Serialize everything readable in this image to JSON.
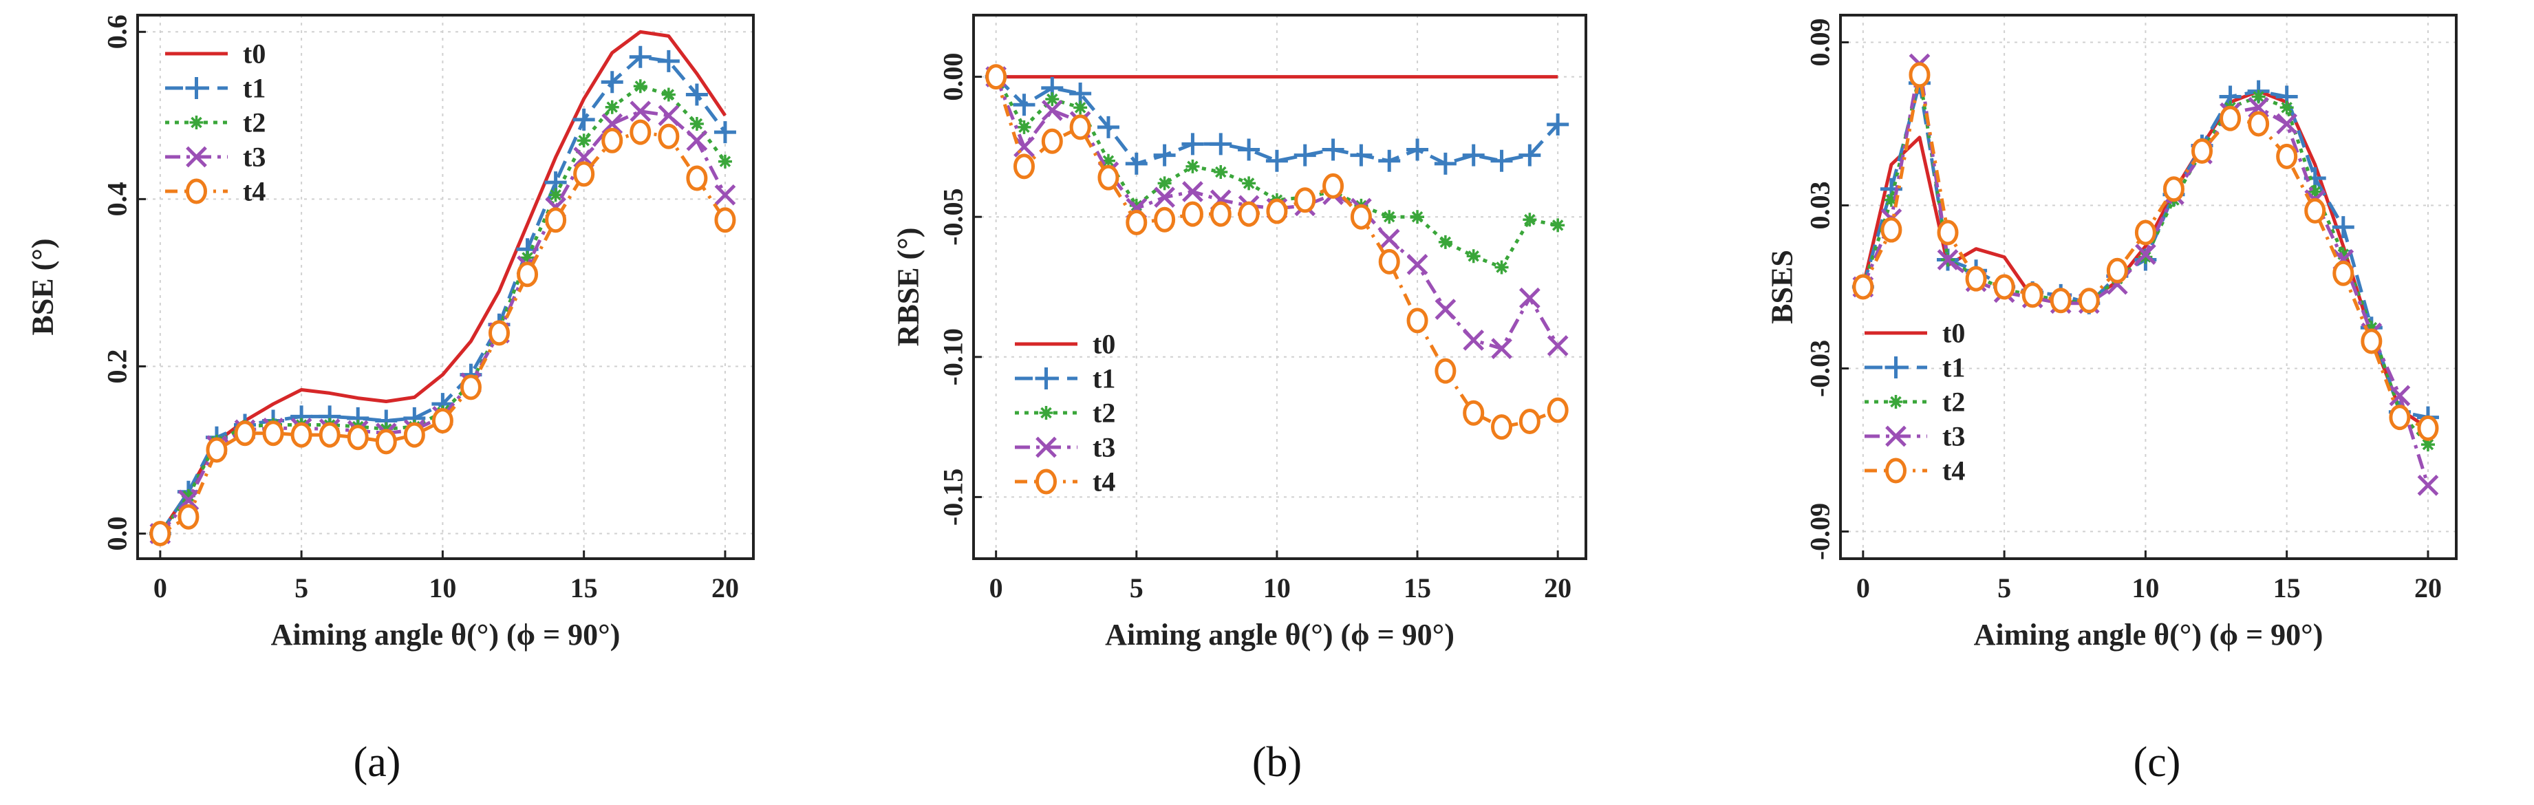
{
  "figure": {
    "series_styles": [
      {
        "name": "t0",
        "color": "#d62728",
        "dash": "",
        "marker": "none"
      },
      {
        "name": "t1",
        "color": "#3b7dbf",
        "dash": "26 12",
        "marker": "plus"
      },
      {
        "name": "t2",
        "color": "#3aa63a",
        "dash": "6 8",
        "marker": "star"
      },
      {
        "name": "t3",
        "color": "#9b4fb5",
        "dash": "22 9 5 9",
        "marker": "x"
      },
      {
        "name": "t4",
        "color": "#f07d1a",
        "dash": "18 10 4 10",
        "marker": "circle"
      }
    ]
  },
  "chart_data": [
    {
      "type": "line",
      "panel_label": "(a)",
      "title": "",
      "xlabel": "Aiming angle θ(°) (ϕ = 90°)",
      "ylabel": "BSE (°)",
      "xlim": [
        -0.8,
        21.0
      ],
      "ylim": [
        -0.03,
        0.62
      ],
      "xticks": [
        0,
        5,
        10,
        15,
        20
      ],
      "xtick_labels": [
        "0",
        "5",
        "10",
        "15",
        "20"
      ],
      "yticks": [
        0.0,
        0.2,
        0.4,
        0.6
      ],
      "ytick_labels": [
        "0.0",
        "0.2",
        "0.4",
        "0.6"
      ],
      "legend_position": "top-left",
      "x": [
        0,
        1,
        2,
        3,
        4,
        5,
        6,
        7,
        8,
        9,
        10,
        11,
        12,
        13,
        14,
        15,
        16,
        17,
        18,
        19,
        20
      ],
      "series": [
        {
          "name": "t0",
          "values": [
            0.0,
            0.05,
            0.11,
            0.135,
            0.155,
            0.172,
            0.168,
            0.162,
            0.158,
            0.163,
            0.19,
            0.23,
            0.29,
            0.37,
            0.45,
            0.52,
            0.575,
            0.6,
            0.595,
            0.55,
            0.5
          ]
        },
        {
          "name": "t1",
          "values": [
            0.0,
            0.05,
            0.115,
            0.13,
            0.135,
            0.14,
            0.14,
            0.138,
            0.135,
            0.138,
            0.155,
            0.19,
            0.25,
            0.34,
            0.42,
            0.495,
            0.54,
            0.57,
            0.565,
            0.525,
            0.48
          ]
        },
        {
          "name": "t2",
          "values": [
            0.0,
            0.045,
            0.11,
            0.128,
            0.13,
            0.13,
            0.13,
            0.128,
            0.125,
            0.128,
            0.145,
            0.18,
            0.245,
            0.33,
            0.405,
            0.47,
            0.51,
            0.535,
            0.525,
            0.49,
            0.445
          ]
        },
        {
          "name": "t3",
          "values": [
            0.0,
            0.04,
            0.105,
            0.124,
            0.126,
            0.126,
            0.125,
            0.123,
            0.12,
            0.124,
            0.14,
            0.18,
            0.24,
            0.32,
            0.39,
            0.45,
            0.49,
            0.505,
            0.5,
            0.47,
            0.405
          ]
        },
        {
          "name": "t4",
          "values": [
            0.0,
            0.02,
            0.1,
            0.12,
            0.12,
            0.118,
            0.118,
            0.115,
            0.11,
            0.118,
            0.135,
            0.175,
            0.24,
            0.31,
            0.375,
            0.43,
            0.47,
            0.48,
            0.475,
            0.425,
            0.375
          ]
        }
      ]
    },
    {
      "type": "line",
      "panel_label": "(b)",
      "title": "",
      "xlabel": "Aiming angle θ(°) (ϕ = 90°)",
      "ylabel": "RBSE (°)",
      "xlim": [
        -0.8,
        21.0
      ],
      "ylim": [
        -0.172,
        0.022
      ],
      "xticks": [
        0,
        5,
        10,
        15,
        20
      ],
      "xtick_labels": [
        "0",
        "5",
        "10",
        "15",
        "20"
      ],
      "yticks": [
        0.0,
        -0.05,
        -0.1,
        -0.15
      ],
      "ytick_labels": [
        "0.00",
        "-0.05",
        "-0.10",
        "-0.15"
      ],
      "legend_position": "bottom-left",
      "x": [
        0,
        1,
        2,
        3,
        4,
        5,
        6,
        7,
        8,
        9,
        10,
        11,
        12,
        13,
        14,
        15,
        16,
        17,
        18,
        19,
        20
      ],
      "series": [
        {
          "name": "t0",
          "values": [
            0,
            0,
            0,
            0,
            0,
            0,
            0,
            0,
            0,
            0,
            0,
            0,
            0,
            0,
            0,
            0,
            0,
            0,
            0,
            0,
            0
          ]
        },
        {
          "name": "t1",
          "values": [
            0.0,
            -0.01,
            -0.004,
            -0.006,
            -0.018,
            -0.031,
            -0.028,
            -0.024,
            -0.024,
            -0.026,
            -0.03,
            -0.028,
            -0.026,
            -0.028,
            -0.03,
            -0.026,
            -0.031,
            -0.028,
            -0.03,
            -0.028,
            -0.017
          ]
        },
        {
          "name": "t2",
          "values": [
            0.0,
            -0.018,
            -0.008,
            -0.011,
            -0.03,
            -0.046,
            -0.038,
            -0.032,
            -0.034,
            -0.038,
            -0.044,
            -0.043,
            -0.041,
            -0.046,
            -0.05,
            -0.05,
            -0.059,
            -0.064,
            -0.068,
            -0.051,
            -0.053
          ]
        },
        {
          "name": "t3",
          "values": [
            0.0,
            -0.025,
            -0.012,
            -0.016,
            -0.034,
            -0.047,
            -0.043,
            -0.041,
            -0.044,
            -0.046,
            -0.047,
            -0.046,
            -0.042,
            -0.047,
            -0.058,
            -0.067,
            -0.083,
            -0.094,
            -0.097,
            -0.079,
            -0.096
          ]
        },
        {
          "name": "t4",
          "values": [
            0.0,
            -0.032,
            -0.023,
            -0.018,
            -0.036,
            -0.052,
            -0.051,
            -0.049,
            -0.049,
            -0.049,
            -0.048,
            -0.044,
            -0.039,
            -0.05,
            -0.066,
            -0.087,
            -0.105,
            -0.12,
            -0.125,
            -0.123,
            -0.119
          ]
        }
      ]
    },
    {
      "type": "line",
      "panel_label": "(c)",
      "title": "",
      "xlabel": "Aiming angle θ(°) (ϕ = 90°)",
      "ylabel": "BSES",
      "xlim": [
        -0.8,
        21.0
      ],
      "ylim": [
        -0.1,
        0.1
      ],
      "xticks": [
        0,
        5,
        10,
        15,
        20
      ],
      "xtick_labels": [
        "0",
        "5",
        "10",
        "15",
        "20"
      ],
      "yticks": [
        0.09,
        0.03,
        -0.03,
        -0.09
      ],
      "ytick_labels": [
        "0.09",
        "0.03",
        "-0.03",
        "-0.09"
      ],
      "legend_position": "bottom-left",
      "x": [
        0,
        1,
        2,
        3,
        4,
        5,
        6,
        7,
        8,
        9,
        10,
        11,
        12,
        13,
        14,
        15,
        16,
        17,
        18,
        19,
        20
      ],
      "series": [
        {
          "name": "t0",
          "values": [
            0.0,
            0.045,
            0.055,
            0.008,
            0.014,
            0.011,
            -0.004,
            -0.006,
            -0.005,
            0.002,
            0.015,
            0.035,
            0.052,
            0.068,
            0.072,
            0.068,
            0.045,
            0.015,
            -0.018,
            -0.045,
            -0.052
          ]
        },
        {
          "name": "t1",
          "values": [
            0.0,
            0.036,
            0.075,
            0.01,
            0.006,
            0.0,
            -0.002,
            -0.003,
            -0.006,
            0.004,
            0.01,
            0.034,
            0.052,
            0.07,
            0.072,
            0.07,
            0.04,
            0.022,
            -0.015,
            -0.046,
            -0.048
          ]
        },
        {
          "name": "t2",
          "values": [
            0.0,
            0.032,
            0.078,
            0.01,
            0.004,
            -0.001,
            -0.003,
            -0.005,
            -0.006,
            0.003,
            0.011,
            0.032,
            0.05,
            0.066,
            0.07,
            0.066,
            0.035,
            0.012,
            -0.015,
            -0.046,
            -0.058
          ]
        },
        {
          "name": "t3",
          "values": [
            0.0,
            0.025,
            0.082,
            0.01,
            0.002,
            -0.002,
            -0.004,
            -0.006,
            -0.006,
            0.001,
            0.012,
            0.034,
            0.049,
            0.064,
            0.066,
            0.06,
            0.032,
            0.01,
            -0.017,
            -0.04,
            -0.073
          ]
        },
        {
          "name": "t4",
          "values": [
            0.0,
            0.021,
            0.078,
            0.02,
            0.003,
            0.0,
            -0.003,
            -0.005,
            -0.005,
            0.006,
            0.02,
            0.036,
            0.05,
            0.062,
            0.06,
            0.048,
            0.028,
            0.005,
            -0.02,
            -0.048,
            -0.052
          ]
        }
      ]
    }
  ]
}
